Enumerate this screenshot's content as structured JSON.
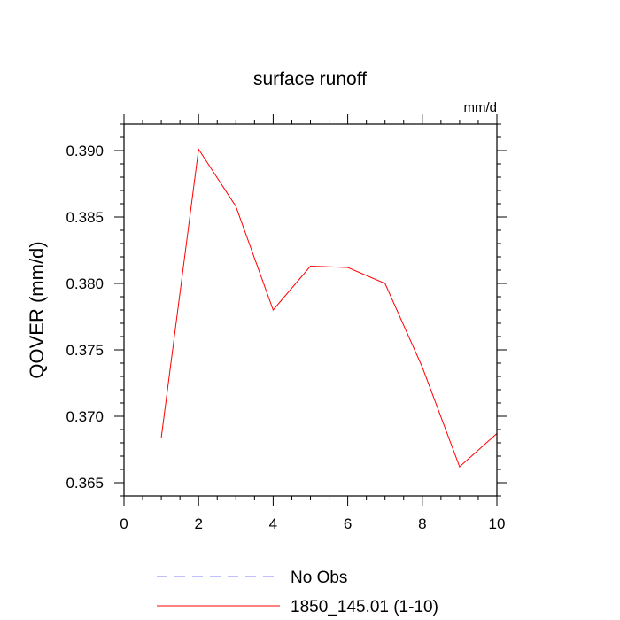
{
  "chart_data": {
    "type": "line",
    "title": "surface runoff",
    "units_label": "mm/d",
    "xlabel": "",
    "ylabel": "QOVER  (mm/d)",
    "xlim": [
      0,
      10
    ],
    "ylim": [
      0.364,
      0.392
    ],
    "x_ticks": [
      0,
      2,
      4,
      6,
      8,
      10
    ],
    "x_tick_labels": [
      "0",
      "2",
      "4",
      "6",
      "8",
      "10"
    ],
    "y_ticks": [
      0.365,
      0.37,
      0.375,
      0.38,
      0.385,
      0.39
    ],
    "y_tick_labels": [
      "0.365",
      "0.370",
      "0.375",
      "0.380",
      "0.385",
      "0.390"
    ],
    "grid": false,
    "legend_position": "bottom",
    "series": [
      {
        "name": "1850_145.01 (1-10)",
        "color": "#ff0000",
        "dash": "solid",
        "x": [
          1,
          2,
          3,
          4,
          5,
          6,
          7,
          8,
          9,
          10
        ],
        "values": [
          0.3684,
          0.3901,
          0.3858,
          0.378,
          0.3813,
          0.3812,
          0.38,
          0.3737,
          0.3662,
          0.3687
        ]
      }
    ],
    "legend": [
      {
        "label": "No Obs",
        "color": "#8080ff",
        "dash": "dashed"
      },
      {
        "label": "1850_145.01 (1-10)",
        "color": "#ff0000",
        "dash": "solid"
      }
    ]
  }
}
